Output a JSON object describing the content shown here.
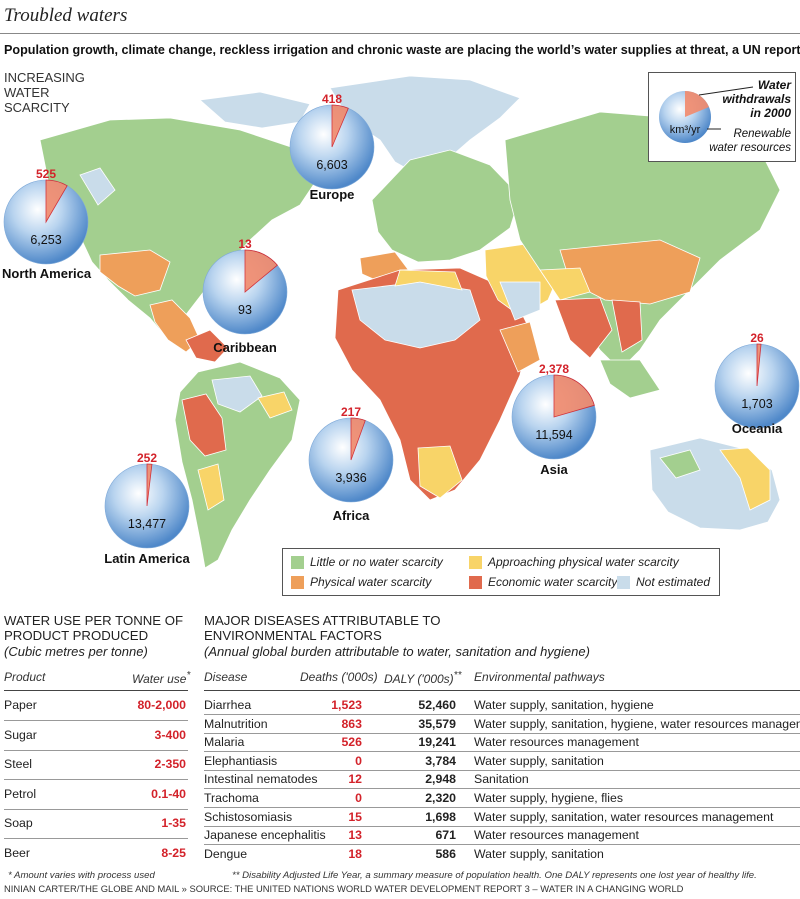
{
  "title": "Troubled waters",
  "subtitle": "Population growth, climate change, reckless irrigation and chronic waste are placing the world’s water supplies at threat, a UN report says.",
  "map": {
    "scarcity_label_lines": [
      "INCREASING",
      "WATER",
      "SCARCITY"
    ],
    "colors": {
      "little": "#a3cf8f",
      "approaching": "#f8d468",
      "physical": "#ee9f5a",
      "economic": "#e06a4d",
      "not_estimated": "#c9dcea",
      "withdrawal": "#f28a6c",
      "bubble": "#5d93cf",
      "red_text": "#d3222a"
    },
    "legend": [
      {
        "label": "Little or no water scarcity",
        "color_key": "little"
      },
      {
        "label": "Approaching physical water scarcity",
        "color_key": "approaching"
      },
      {
        "label": "Physical water scarcity",
        "color_key": "physical"
      },
      {
        "label": "Economic water scarcity",
        "color_key": "economic"
      },
      {
        "label": "Not estimated",
        "color_key": "not_estimated"
      }
    ],
    "key": {
      "withdrawals_lines": [
        "Water",
        "withdrawals",
        "in 2000"
      ],
      "unit": "km³/yr",
      "renewable_lines": [
        "Renewable",
        "water resources"
      ]
    }
  },
  "chart_data": [
    {
      "type": "pie",
      "title": "Water withdrawals in 2000 vs renewable water resources (km³/yr)",
      "series": [
        {
          "region": "North America",
          "withdrawals": 525,
          "renewable": 6253
        },
        {
          "region": "Europe",
          "withdrawals": 418,
          "renewable": 6603
        },
        {
          "region": "Caribbean",
          "withdrawals": 13,
          "renewable": 93
        },
        {
          "region": "Latin America",
          "withdrawals": 252,
          "renewable": 13477
        },
        {
          "region": "Africa",
          "withdrawals": 217,
          "renewable": 3936
        },
        {
          "region": "Asia",
          "withdrawals": 2378,
          "renewable": 11594
        },
        {
          "region": "Oceania",
          "withdrawals": 26,
          "renewable": 1703
        }
      ],
      "labels": {
        "North America": {
          "w": "525",
          "r": "6,253",
          "name": "North America"
        },
        "Europe": {
          "w": "418",
          "r": "6,603",
          "name": "Europe"
        },
        "Caribbean": {
          "w": "13",
          "r": "93",
          "name": "Caribbean"
        },
        "Latin America": {
          "w": "252",
          "r": "13,477",
          "name": "Latin America"
        },
        "Africa": {
          "w": "217",
          "r": "3,936",
          "name": "Africa"
        },
        "Asia": {
          "w": "2,378",
          "r": "11,594",
          "name": "Asia"
        },
        "Oceania": {
          "w": "26",
          "r": "1,703",
          "name": "Oceania"
        }
      }
    },
    {
      "type": "table",
      "title": "WATER USE PER TONNE OF PRODUCT PRODUCED",
      "columns": [
        "Product",
        "Water use*"
      ],
      "rows": [
        [
          "Paper",
          "80-2,000"
        ],
        [
          "Sugar",
          "3-400"
        ],
        [
          "Steel",
          "2-350"
        ],
        [
          "Petrol",
          "0.1-40"
        ],
        [
          "Soap",
          "1-35"
        ],
        [
          "Beer",
          "8-25"
        ]
      ]
    },
    {
      "type": "table",
      "title": "MAJOR DISEASES ATTRIBUTABLE TO ENVIRONMENTAL FACTORS",
      "columns": [
        "Disease",
        "Deaths ('000s)",
        "DALY ('000s)**",
        "Environmental pathways"
      ],
      "rows": [
        [
          "Diarrhea",
          "1,523",
          "52,460",
          "Water supply, sanitation, hygiene"
        ],
        [
          "Malnutrition",
          "863",
          "35,579",
          "Water supply, sanitation, hygiene, water resources management"
        ],
        [
          "Malaria",
          "526",
          "19,241",
          "Water resources management"
        ],
        [
          "Elephantiasis",
          "0",
          "3,784",
          "Water supply, sanitation"
        ],
        [
          "Intestinal nematodes",
          "12",
          "2,948",
          "Sanitation"
        ],
        [
          "Trachoma",
          "0",
          "2,320",
          "Water supply, hygiene, flies"
        ],
        [
          "Schistosomiasis",
          "15",
          "1,698",
          "Water supply, sanitation, water resources management"
        ],
        [
          "Japanese encephalitis",
          "13",
          "671",
          "Water resources management"
        ],
        [
          "Dengue",
          "18",
          "586",
          "Water supply, sanitation"
        ]
      ]
    }
  ],
  "water_use": {
    "heading_lines": [
      "WATER USE PER TONNE OF",
      "PRODUCT PRODUCED"
    ],
    "sub": "(Cubic metres per tonne)",
    "col_product": "Product",
    "col_use": "Water use",
    "col_use_mark": "*",
    "footnote": "* Amount varies with process used"
  },
  "diseases": {
    "heading_lines": [
      "MAJOR DISEASES ATTRIBUTABLE TO",
      "ENVIRONMENTAL FACTORS"
    ],
    "sub": "(Annual global burden attributable to water, sanitation and hygiene)",
    "col_disease": "Disease",
    "col_deaths": "Deaths ('000s)",
    "col_daly": "DALY ('000s)",
    "col_daly_mark": "**",
    "col_path": "Environmental pathways",
    "footnote": "** Disability Adjusted Life Year, a summary measure of population health. One DALY represents one lost year of healthy life."
  },
  "credit": "NINIAN CARTER/THE GLOBE AND MAIL  »  SOURCE: THE UNITED NATIONS WORLD WATER DEVELOPMENT REPORT 3 – WATER IN A CHANGING WORLD"
}
